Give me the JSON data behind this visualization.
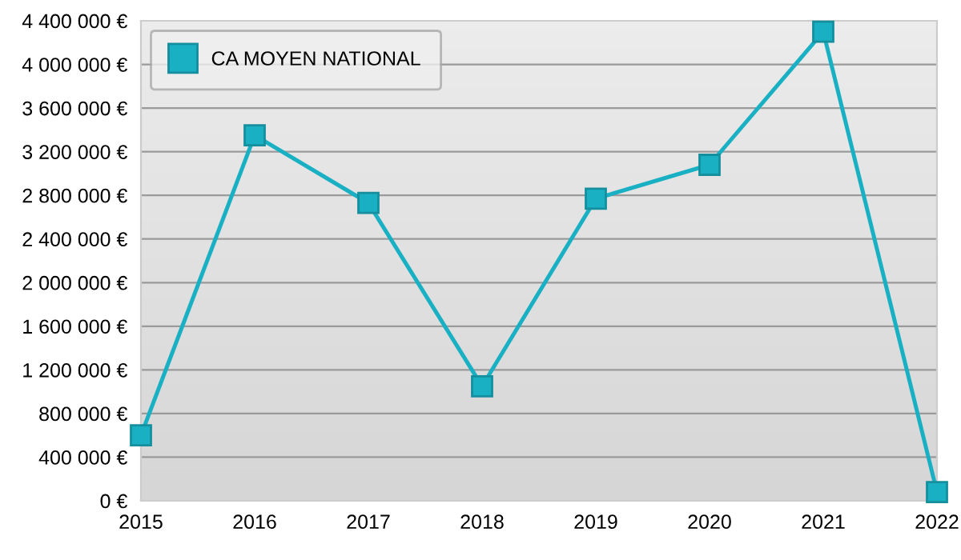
{
  "chart_data": {
    "type": "line",
    "x": [
      2015,
      2016,
      2017,
      2018,
      2019,
      2020,
      2021,
      2022
    ],
    "series": [
      {
        "name": "CA MOYEN NATIONAL",
        "color": "#1ab0c4",
        "values": [
          600000,
          3350000,
          2730000,
          1050000,
          2770000,
          3080000,
          4300000,
          80000
        ]
      }
    ],
    "xlim": [
      2015,
      2022
    ],
    "xticks": [
      2015,
      2016,
      2017,
      2018,
      2019,
      2020,
      2021,
      2022
    ],
    "ylim": [
      0,
      4400000
    ],
    "yticks": [
      {
        "value": 0,
        "label": "0 €"
      },
      {
        "value": 400000,
        "label": "400 000 €"
      },
      {
        "value": 800000,
        "label": "800 000 €"
      },
      {
        "value": 1200000,
        "label": "1 200 000 €"
      },
      {
        "value": 1600000,
        "label": "1 600 000 €"
      },
      {
        "value": 2000000,
        "label": "2 000 000 €"
      },
      {
        "value": 2400000,
        "label": "2 400 000 €"
      },
      {
        "value": 2800000,
        "label": "2 800 000 €"
      },
      {
        "value": 3200000,
        "label": "3 200 000 €"
      },
      {
        "value": 3600000,
        "label": "3 600 000 €"
      },
      {
        "value": 4000000,
        "label": "4 000 000 €"
      },
      {
        "value": 4400000,
        "label": "4 400 000 €"
      }
    ],
    "grid": "y",
    "legend": "top left",
    "marker": "square",
    "line_style": "solid"
  }
}
